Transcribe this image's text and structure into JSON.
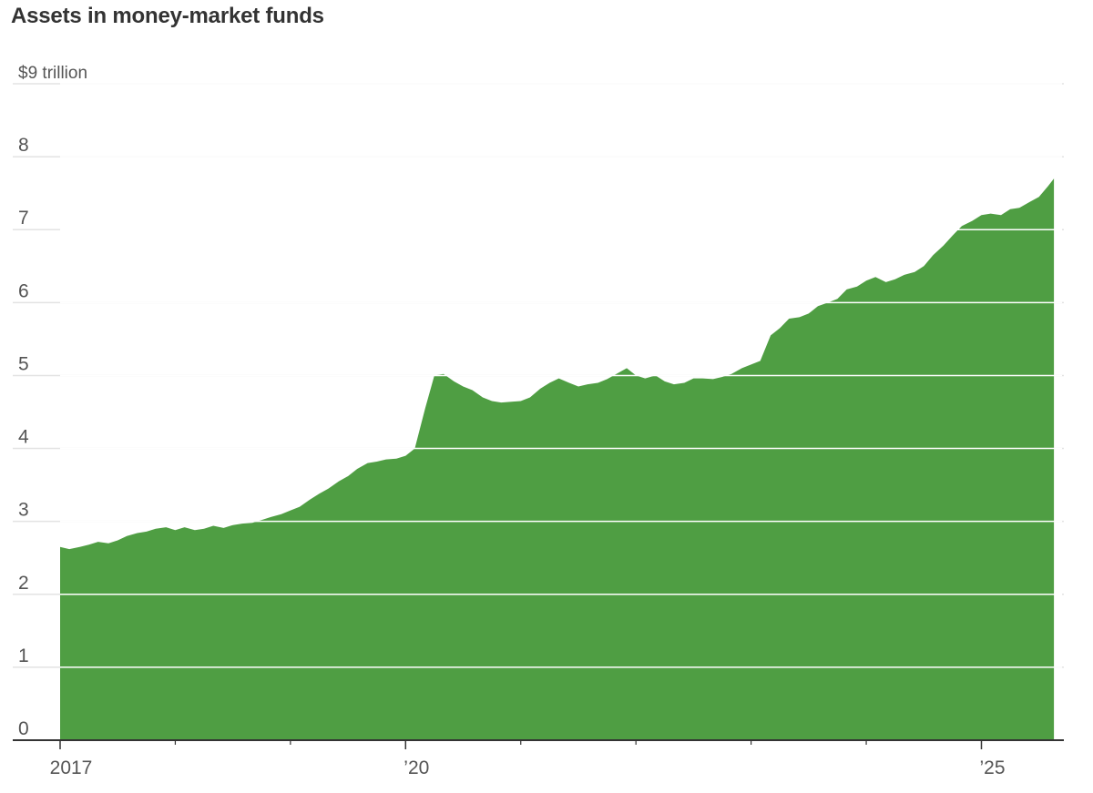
{
  "chart_data": {
    "type": "area",
    "title": "Assets in money-market funds",
    "ylabel": "",
    "xlabel": "",
    "y_unit_label": "$9 trillion",
    "ylim": [
      0,
      9
    ],
    "xlim": [
      2017.0,
      2025.7
    ],
    "y_ticks": [
      {
        "value": 9,
        "label": "$9 trillion"
      },
      {
        "value": 8,
        "label": "8"
      },
      {
        "value": 7,
        "label": "7"
      },
      {
        "value": 6,
        "label": "6"
      },
      {
        "value": 5,
        "label": "5"
      },
      {
        "value": 4,
        "label": "4"
      },
      {
        "value": 3,
        "label": "3"
      },
      {
        "value": 2,
        "label": "2"
      },
      {
        "value": 1,
        "label": "1"
      },
      {
        "value": 0,
        "label": "0"
      }
    ],
    "x_ticks": [
      {
        "value": 2017,
        "label": "2017"
      },
      {
        "value": 2020,
        "label": "’20"
      },
      {
        "value": 2025,
        "label": "’25"
      }
    ],
    "x_minor_ticks": [
      2018,
      2019,
      2021,
      2022,
      2023,
      2024
    ],
    "grid": true,
    "colors": {
      "area": "#4f9e43",
      "grid": "#e3e3e3",
      "grid_over_area": "#ffffff",
      "axis": "#333333"
    },
    "series": [
      {
        "values": [
          [
            2017.0,
            2.65
          ],
          [
            2017.08,
            2.62
          ],
          [
            2017.17,
            2.65
          ],
          [
            2017.25,
            2.68
          ],
          [
            2017.33,
            2.72
          ],
          [
            2017.42,
            2.7
          ],
          [
            2017.5,
            2.74
          ],
          [
            2017.58,
            2.8
          ],
          [
            2017.67,
            2.84
          ],
          [
            2017.75,
            2.86
          ],
          [
            2017.83,
            2.9
          ],
          [
            2017.92,
            2.92
          ],
          [
            2018.0,
            2.88
          ],
          [
            2018.08,
            2.92
          ],
          [
            2018.17,
            2.88
          ],
          [
            2018.25,
            2.9
          ],
          [
            2018.33,
            2.94
          ],
          [
            2018.42,
            2.91
          ],
          [
            2018.5,
            2.95
          ],
          [
            2018.58,
            2.97
          ],
          [
            2018.67,
            2.98
          ],
          [
            2018.75,
            3.02
          ],
          [
            2018.83,
            3.06
          ],
          [
            2018.92,
            3.1
          ],
          [
            2019.0,
            3.15
          ],
          [
            2019.08,
            3.2
          ],
          [
            2019.17,
            3.3
          ],
          [
            2019.25,
            3.38
          ],
          [
            2019.33,
            3.45
          ],
          [
            2019.42,
            3.55
          ],
          [
            2019.5,
            3.62
          ],
          [
            2019.58,
            3.72
          ],
          [
            2019.67,
            3.8
          ],
          [
            2019.75,
            3.82
          ],
          [
            2019.83,
            3.85
          ],
          [
            2019.92,
            3.86
          ],
          [
            2020.0,
            3.9
          ],
          [
            2020.08,
            4.0
          ],
          [
            2020.17,
            4.55
          ],
          [
            2020.25,
            5.0
          ],
          [
            2020.33,
            5.02
          ],
          [
            2020.42,
            4.92
          ],
          [
            2020.5,
            4.85
          ],
          [
            2020.58,
            4.8
          ],
          [
            2020.67,
            4.7
          ],
          [
            2020.75,
            4.65
          ],
          [
            2020.83,
            4.63
          ],
          [
            2020.92,
            4.64
          ],
          [
            2021.0,
            4.65
          ],
          [
            2021.08,
            4.7
          ],
          [
            2021.17,
            4.82
          ],
          [
            2021.25,
            4.9
          ],
          [
            2021.33,
            4.96
          ],
          [
            2021.42,
            4.9
          ],
          [
            2021.5,
            4.85
          ],
          [
            2021.58,
            4.88
          ],
          [
            2021.67,
            4.9
          ],
          [
            2021.75,
            4.95
          ],
          [
            2021.83,
            5.02
          ],
          [
            2021.92,
            5.1
          ],
          [
            2022.0,
            5.0
          ],
          [
            2022.08,
            4.96
          ],
          [
            2022.17,
            5.0
          ],
          [
            2022.25,
            4.92
          ],
          [
            2022.33,
            4.88
          ],
          [
            2022.42,
            4.9
          ],
          [
            2022.5,
            4.96
          ],
          [
            2022.58,
            4.96
          ],
          [
            2022.67,
            4.95
          ],
          [
            2022.75,
            4.98
          ],
          [
            2022.83,
            5.02
          ],
          [
            2022.92,
            5.1
          ],
          [
            2023.0,
            5.15
          ],
          [
            2023.08,
            5.2
          ],
          [
            2023.17,
            5.55
          ],
          [
            2023.25,
            5.65
          ],
          [
            2023.33,
            5.78
          ],
          [
            2023.42,
            5.8
          ],
          [
            2023.5,
            5.85
          ],
          [
            2023.58,
            5.95
          ],
          [
            2023.67,
            6.0
          ],
          [
            2023.75,
            6.05
          ],
          [
            2023.83,
            6.18
          ],
          [
            2023.92,
            6.22
          ],
          [
            2024.0,
            6.3
          ],
          [
            2024.08,
            6.35
          ],
          [
            2024.17,
            6.28
          ],
          [
            2024.25,
            6.32
          ],
          [
            2024.33,
            6.38
          ],
          [
            2024.42,
            6.42
          ],
          [
            2024.5,
            6.5
          ],
          [
            2024.58,
            6.65
          ],
          [
            2024.67,
            6.78
          ],
          [
            2024.75,
            6.92
          ],
          [
            2024.83,
            7.05
          ],
          [
            2024.92,
            7.12
          ],
          [
            2025.0,
            7.2
          ],
          [
            2025.08,
            7.22
          ],
          [
            2025.17,
            7.2
          ],
          [
            2025.25,
            7.28
          ],
          [
            2025.33,
            7.3
          ],
          [
            2025.42,
            7.38
          ],
          [
            2025.5,
            7.45
          ],
          [
            2025.58,
            7.6
          ],
          [
            2025.63,
            7.7
          ]
        ]
      }
    ]
  }
}
